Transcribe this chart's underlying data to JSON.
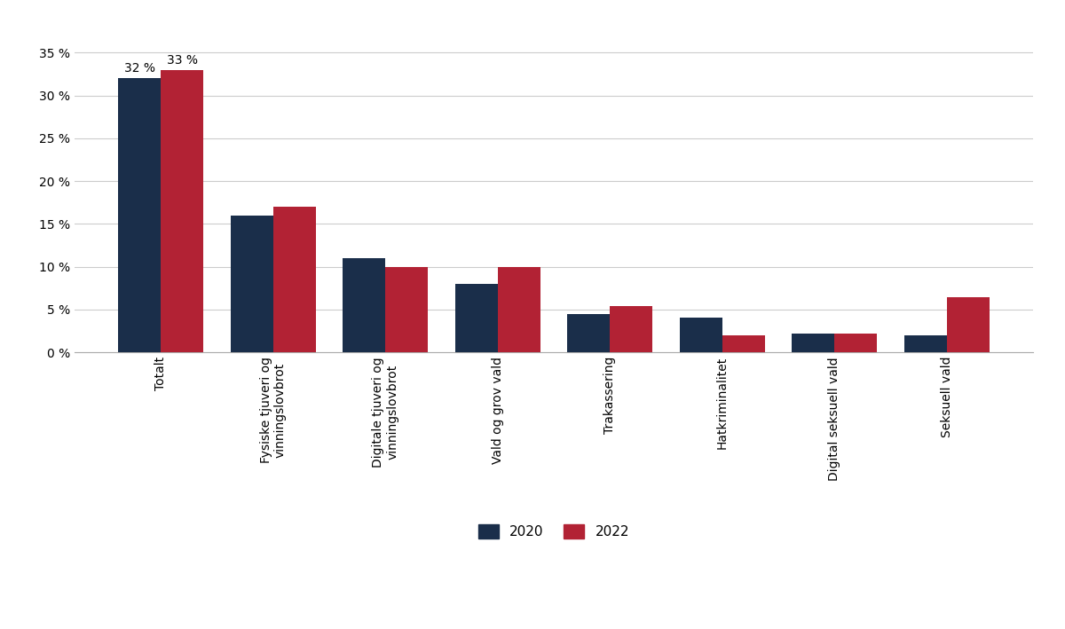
{
  "categories": [
    "Totalt",
    "Fysiske tjuveri og\nvinningslovbrot",
    "Digitale tjuveri og\nvinningslovbrot",
    "Vald og grov vald",
    "Trakassering",
    "Hatkriminalitet",
    "Digital seksuell vald",
    "Seksuell vald"
  ],
  "values_2020": [
    32,
    16,
    11,
    8,
    4.5,
    4,
    2.2,
    2
  ],
  "values_2022": [
    33,
    17,
    10,
    10,
    5.4,
    2,
    2.2,
    6.4
  ],
  "color_2020": "#1a2e4a",
  "color_2022": "#b22234",
  "bar_width": 0.38,
  "ylim": [
    0,
    36
  ],
  "yticks": [
    0,
    5,
    10,
    15,
    20,
    25,
    30,
    35
  ],
  "ytick_labels": [
    "0 %",
    "5 %",
    "10 %",
    "15 %",
    "20 %",
    "25 %",
    "30 %",
    "35 %"
  ],
  "annotation_2020": "32 %",
  "annotation_2022": "33 %",
  "legend_2020": "2020",
  "legend_2022": "2022",
  "background_color": "#ffffff",
  "grid_color": "#cccccc",
  "label_fontsize": 10,
  "tick_fontsize": 10,
  "xtick_fontsize": 10,
  "legend_fontsize": 11
}
